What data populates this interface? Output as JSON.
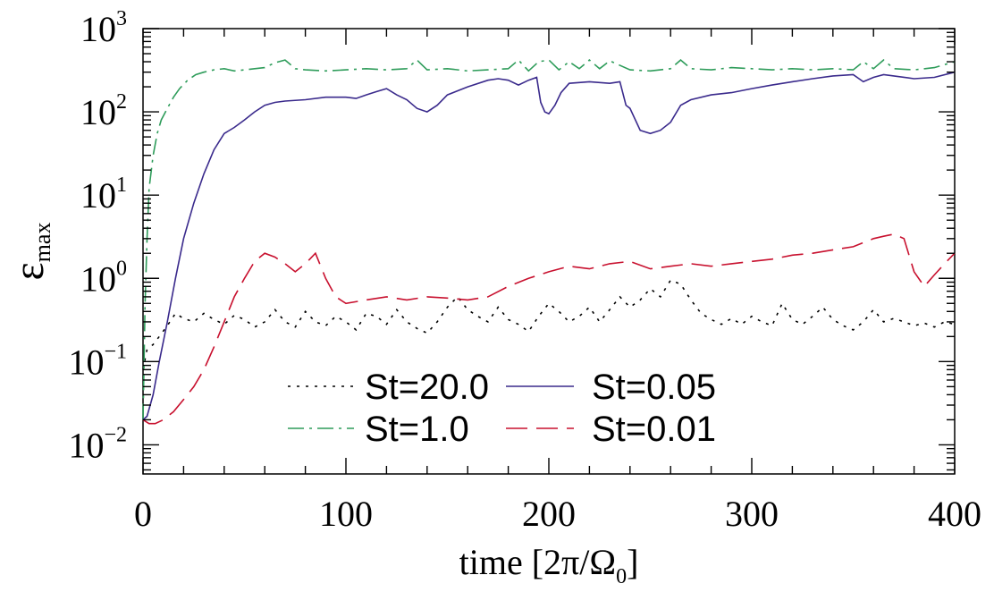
{
  "chart_data": {
    "type": "line",
    "x_axis": {
      "label_prefix": "time [2π/Ω",
      "label_sub": "0",
      "label_suffix": "]",
      "range": [
        0,
        400
      ],
      "ticks": [
        0,
        100,
        200,
        300,
        400
      ],
      "tick_labels": [
        "0",
        "100",
        "200",
        "300",
        "400"
      ]
    },
    "y_axis": {
      "scale": "log",
      "label_main": "ε",
      "label_sub": "max",
      "range_exponents": [
        -2.35,
        3
      ],
      "ticks": [
        {
          "base": "10",
          "exp": "−2",
          "value": 0.01
        },
        {
          "base": "10",
          "exp": "−1",
          "value": 0.1
        },
        {
          "base": "10",
          "exp": "0",
          "value": 1
        },
        {
          "base": "10",
          "exp": "1",
          "value": 10
        },
        {
          "base": "10",
          "exp": "2",
          "value": 100
        },
        {
          "base": "10",
          "exp": "3",
          "value": 1000
        }
      ]
    },
    "series": [
      {
        "name": "St=20.0",
        "color": "#000000",
        "dash": "3,7",
        "x": [
          0,
          2,
          5,
          8,
          12,
          16,
          20,
          25,
          30,
          35,
          40,
          45,
          50,
          55,
          60,
          65,
          70,
          75,
          80,
          85,
          90,
          95,
          100,
          105,
          110,
          115,
          120,
          125,
          130,
          135,
          140,
          145,
          150,
          155,
          160,
          165,
          170,
          175,
          180,
          185,
          190,
          195,
          200,
          205,
          210,
          215,
          220,
          225,
          230,
          235,
          240,
          245,
          250,
          255,
          260,
          265,
          270,
          275,
          280,
          285,
          290,
          295,
          300,
          305,
          310,
          315,
          320,
          325,
          330,
          335,
          340,
          345,
          350,
          355,
          360,
          365,
          370,
          375,
          380,
          385,
          390,
          395,
          400
        ],
        "y": [
          0.08,
          0.14,
          0.16,
          0.2,
          0.27,
          0.38,
          0.33,
          0.3,
          0.38,
          0.32,
          0.28,
          0.36,
          0.32,
          0.26,
          0.3,
          0.42,
          0.3,
          0.26,
          0.4,
          0.3,
          0.27,
          0.35,
          0.3,
          0.24,
          0.38,
          0.35,
          0.28,
          0.42,
          0.3,
          0.25,
          0.22,
          0.3,
          0.45,
          0.6,
          0.42,
          0.35,
          0.3,
          0.45,
          0.32,
          0.28,
          0.23,
          0.35,
          0.5,
          0.4,
          0.3,
          0.35,
          0.45,
          0.3,
          0.42,
          0.6,
          0.45,
          0.55,
          0.75,
          0.6,
          0.95,
          0.85,
          0.55,
          0.38,
          0.32,
          0.28,
          0.33,
          0.28,
          0.35,
          0.3,
          0.27,
          0.5,
          0.32,
          0.28,
          0.35,
          0.45,
          0.32,
          0.27,
          0.24,
          0.3,
          0.42,
          0.3,
          0.33,
          0.3,
          0.27,
          0.29,
          0.26,
          0.3,
          0.28
        ]
      },
      {
        "name": "St=1.0",
        "color": "#2e9c5a",
        "dash": "18,6,3,6",
        "x": [
          0,
          1,
          2,
          3,
          5,
          7,
          9,
          12,
          15,
          18,
          22,
          26,
          30,
          35,
          40,
          45,
          50,
          55,
          60,
          65,
          70,
          75,
          80,
          90,
          100,
          110,
          120,
          130,
          135,
          140,
          150,
          160,
          170,
          180,
          185,
          190,
          195,
          200,
          205,
          210,
          215,
          220,
          225,
          230,
          240,
          250,
          260,
          265,
          270,
          280,
          290,
          300,
          310,
          320,
          330,
          340,
          350,
          355,
          360,
          365,
          370,
          380,
          390,
          400
        ],
        "y": [
          0.02,
          0.5,
          3,
          12,
          30,
          55,
          80,
          110,
          150,
          190,
          240,
          280,
          300,
          320,
          330,
          310,
          320,
          330,
          340,
          390,
          420,
          330,
          320,
          310,
          320,
          330,
          320,
          330,
          420,
          320,
          330,
          310,
          320,
          330,
          420,
          310,
          400,
          420,
          320,
          400,
          330,
          420,
          330,
          410,
          320,
          310,
          330,
          420,
          330,
          320,
          340,
          330,
          320,
          330,
          320,
          330,
          320,
          400,
          330,
          420,
          330,
          320,
          340,
          400
        ]
      },
      {
        "name": "St=0.05",
        "color": "#3a2a8c",
        "dash": "",
        "x": [
          0,
          2,
          5,
          8,
          12,
          16,
          20,
          25,
          30,
          35,
          40,
          45,
          50,
          55,
          60,
          65,
          70,
          80,
          90,
          100,
          105,
          110,
          115,
          120,
          125,
          130,
          135,
          140,
          145,
          150,
          160,
          170,
          175,
          180,
          185,
          190,
          194,
          196,
          198,
          200,
          203,
          206,
          210,
          220,
          230,
          235,
          238,
          240,
          245,
          250,
          255,
          260,
          265,
          270,
          280,
          290,
          300,
          310,
          320,
          330,
          340,
          350,
          355,
          360,
          365,
          370,
          380,
          390,
          400
        ],
        "y": [
          0.02,
          0.022,
          0.04,
          0.1,
          0.3,
          1,
          3,
          8,
          18,
          35,
          55,
          65,
          80,
          100,
          120,
          130,
          135,
          140,
          150,
          150,
          145,
          160,
          175,
          190,
          160,
          140,
          110,
          100,
          120,
          160,
          200,
          240,
          250,
          240,
          210,
          240,
          260,
          130,
          100,
          95,
          120,
          170,
          220,
          230,
          220,
          230,
          120,
          110,
          60,
          55,
          60,
          75,
          120,
          140,
          160,
          170,
          190,
          210,
          230,
          250,
          270,
          280,
          230,
          260,
          280,
          270,
          250,
          260,
          300
        ]
      },
      {
        "name": "St=0.01",
        "color": "#c8102e",
        "dash": "24,10",
        "x": [
          0,
          3,
          6,
          10,
          15,
          20,
          25,
          30,
          35,
          40,
          45,
          50,
          55,
          60,
          65,
          70,
          75,
          80,
          85,
          90,
          95,
          100,
          110,
          120,
          130,
          140,
          150,
          160,
          170,
          180,
          190,
          200,
          210,
          220,
          230,
          240,
          250,
          260,
          270,
          280,
          290,
          300,
          310,
          320,
          330,
          340,
          350,
          360,
          365,
          370,
          375,
          380,
          385,
          390,
          395,
          400
        ],
        "y": [
          0.02,
          0.018,
          0.018,
          0.02,
          0.025,
          0.035,
          0.05,
          0.08,
          0.15,
          0.3,
          0.6,
          1.0,
          1.6,
          2.0,
          1.8,
          1.5,
          1.2,
          1.5,
          2.0,
          1.0,
          0.6,
          0.5,
          0.55,
          0.6,
          0.55,
          0.6,
          0.58,
          0.55,
          0.6,
          0.8,
          1.0,
          1.2,
          1.4,
          1.3,
          1.5,
          1.6,
          1.3,
          1.4,
          1.5,
          1.4,
          1.5,
          1.6,
          1.7,
          1.9,
          2.0,
          2.2,
          2.4,
          3.0,
          3.2,
          3.4,
          3.0,
          1.2,
          0.8,
          1.1,
          1.5,
          2.0
        ]
      }
    ],
    "legend": [
      {
        "label": "St=20.0",
        "series": 0
      },
      {
        "label": "St=0.05",
        "series": 2
      },
      {
        "label": "St=1.0",
        "series": 1
      },
      {
        "label": "St=0.01",
        "series": 3
      }
    ],
    "legend_position": "bottom-center"
  }
}
